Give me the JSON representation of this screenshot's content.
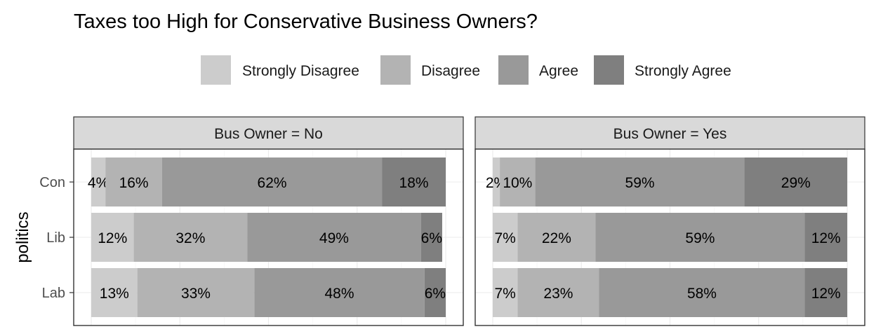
{
  "chart_data": {
    "type": "bar",
    "orientation": "horizontal",
    "stacked": true,
    "percent": true,
    "title": "Taxes too High for Conservative Business Owners?",
    "ylabel": "politics",
    "xlim": [
      0,
      100
    ],
    "grid": true,
    "legend_position": "top",
    "categories": [
      "Con",
      "Lib",
      "Lab"
    ],
    "series": [
      {
        "name": "Strongly Disagree",
        "color": "#cccccc"
      },
      {
        "name": "Disagree",
        "color": "#b3b3b3"
      },
      {
        "name": "Agree",
        "color": "#999999"
      },
      {
        "name": "Strongly Agree",
        "color": "#7f7f7f"
      }
    ],
    "facets": [
      {
        "label": "Bus Owner =  No",
        "values": {
          "Con": [
            4,
            16,
            62,
            18
          ],
          "Lib": [
            12,
            32,
            49,
            6
          ],
          "Lab": [
            13,
            33,
            48,
            6
          ]
        }
      },
      {
        "label": "Bus Owner =  Yes",
        "values": {
          "Con": [
            2,
            10,
            59,
            29
          ],
          "Lib": [
            7,
            22,
            59,
            12
          ],
          "Lab": [
            7,
            23,
            58,
            12
          ]
        }
      }
    ]
  }
}
